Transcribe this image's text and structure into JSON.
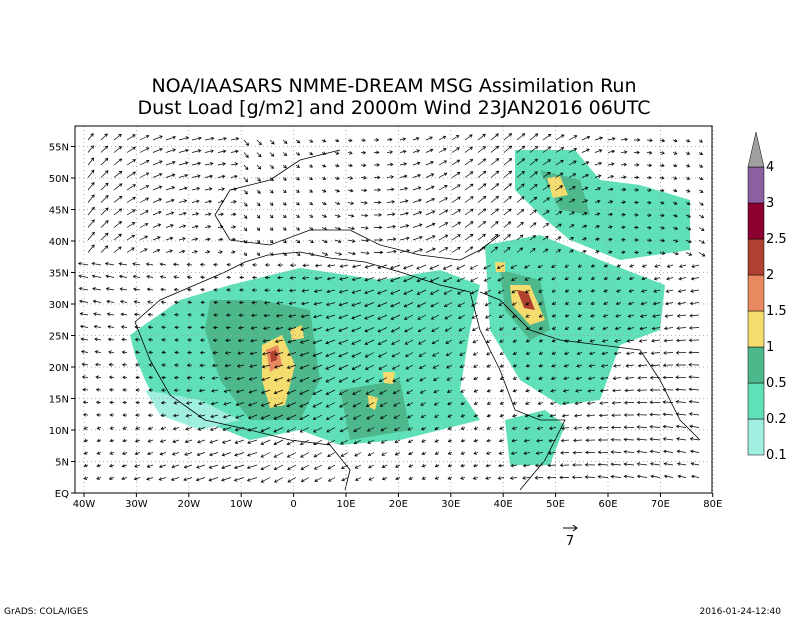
{
  "header": {
    "title_lines": [
      "NOA/IAASARS NMME-DREAM MSG Assimilation Run",
      "Dust Load [g/m2] and 2000m Wind 23JAN2016 06UTC"
    ]
  },
  "map": {
    "lon_ticks": [
      {
        "value": -40,
        "label": "40W"
      },
      {
        "value": -30,
        "label": "30W"
      },
      {
        "value": -20,
        "label": "20W"
      },
      {
        "value": -10,
        "label": "10W"
      },
      0,
      {
        "value": 10,
        "label": "10E"
      },
      {
        "value": 20,
        "label": "20E"
      },
      {
        "value": 30,
        "label": "30E"
      },
      {
        "value": 40,
        "label": "40E"
      },
      {
        "value": 50,
        "label": "50E"
      },
      {
        "value": 60,
        "label": "60E"
      },
      {
        "value": 70,
        "label": "70E"
      },
      {
        "value": 80,
        "label": "80E"
      }
    ],
    "lat_ticks": [
      {
        "value": 0,
        "label": "EQ"
      },
      {
        "value": 5,
        "label": "5N"
      },
      {
        "value": 10,
        "label": "10N"
      },
      {
        "value": 15,
        "label": "15N"
      },
      {
        "value": 20,
        "label": "20N"
      },
      {
        "value": 25,
        "label": "25N"
      },
      {
        "value": 30,
        "label": "30N"
      },
      {
        "value": 35,
        "label": "35N"
      },
      {
        "value": 40,
        "label": "40N"
      },
      {
        "value": 45,
        "label": "45N"
      },
      {
        "value": 50,
        "label": "50N"
      },
      {
        "value": 55,
        "label": "55N"
      }
    ],
    "reference_vector": 7
  },
  "colorbar": {
    "levels": [
      0.1,
      0.2,
      0.5,
      1,
      1.5,
      2,
      2.5,
      3,
      4
    ],
    "colors": [
      "#a0eee0",
      "#5fe0b8",
      "#4cb88c",
      "#f5dc6e",
      "#e88a60",
      "#b04030",
      "#8b0030",
      "#8c5fa0",
      "#a0a0a0"
    ]
  },
  "footer": {
    "left": "GrADS: COLA/IGES",
    "right": "2016-01-24-12:40"
  }
}
